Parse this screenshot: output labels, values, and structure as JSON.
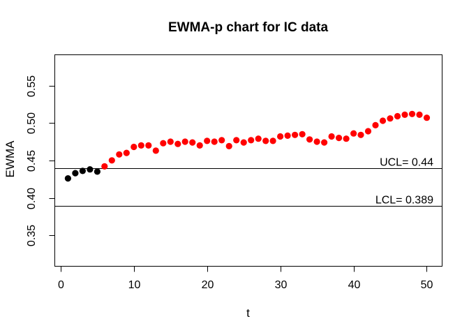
{
  "chart_data": {
    "type": "scatter",
    "title": "EWMA-p chart for IC data",
    "xlabel": "t",
    "ylabel": "EWMA",
    "x": [
      1,
      2,
      3,
      4,
      5,
      6,
      7,
      8,
      9,
      10,
      11,
      12,
      13,
      14,
      15,
      16,
      17,
      18,
      19,
      20,
      21,
      22,
      23,
      24,
      25,
      26,
      27,
      28,
      29,
      30,
      31,
      32,
      33,
      34,
      35,
      36,
      37,
      38,
      39,
      40,
      41,
      42,
      43,
      44,
      45,
      46,
      47,
      48,
      49,
      50
    ],
    "values": [
      0.426,
      0.433,
      0.436,
      0.438,
      0.435,
      0.442,
      0.45,
      0.458,
      0.46,
      0.468,
      0.47,
      0.47,
      0.463,
      0.473,
      0.475,
      0.472,
      0.475,
      0.474,
      0.47,
      0.476,
      0.475,
      0.477,
      0.469,
      0.477,
      0.474,
      0.477,
      0.479,
      0.476,
      0.476,
      0.482,
      0.483,
      0.484,
      0.485,
      0.478,
      0.475,
      0.474,
      0.482,
      0.48,
      0.479,
      0.486,
      0.484,
      0.489,
      0.497,
      0.503,
      0.506,
      0.509,
      0.511,
      0.512,
      0.511,
      0.507
    ],
    "control_limits": {
      "ucl": {
        "label": "UCL= 0.44",
        "value": 0.44
      },
      "lcl": {
        "label": "LCL= 0.389",
        "value": 0.389
      }
    },
    "xticks": {
      "values": [
        0,
        10,
        20,
        30,
        40,
        50
      ],
      "labels": [
        "0",
        "10",
        "20",
        "30",
        "40",
        "50"
      ]
    },
    "yticks": {
      "values": [
        0.35,
        0.4,
        0.45,
        0.5,
        0.55
      ],
      "labels": [
        "0.35",
        "0.40",
        "0.45",
        "0.50",
        "0.55"
      ]
    },
    "xlim": [
      -0.8,
      52.1
    ],
    "ylim": [
      0.3087,
      0.591
    ],
    "grid": false,
    "legend": false,
    "point_rule": "points with value above UCL drawn out-of-control color",
    "colors": {
      "in_control_point": "#000000",
      "out_of_control_point": "#ff0000",
      "axis": "#000000",
      "background": "#ffffff"
    }
  }
}
